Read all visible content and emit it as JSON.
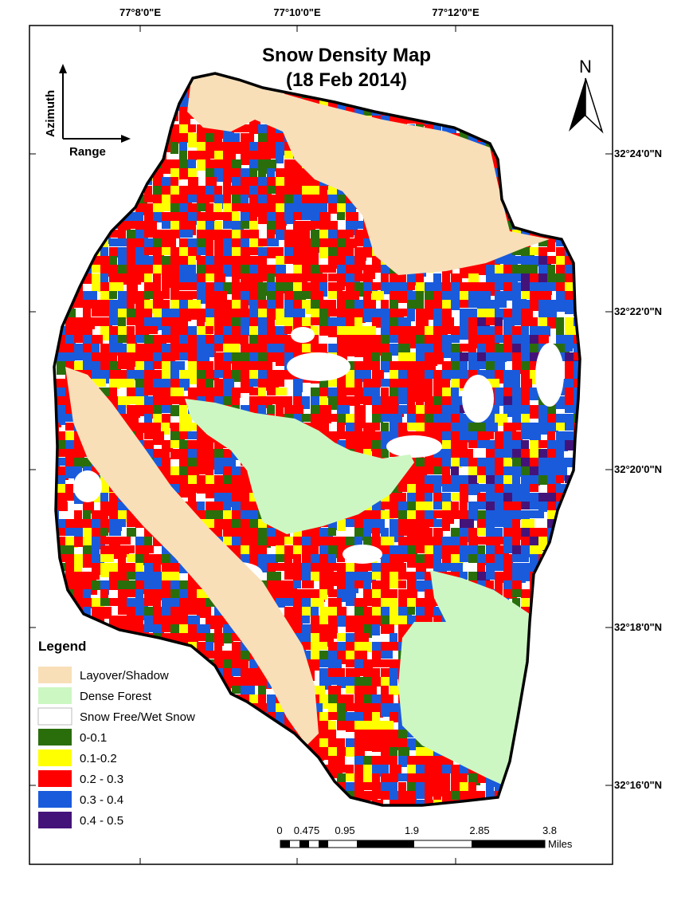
{
  "title": {
    "line1": "Snow Density Map",
    "line2": "(18 Feb 2014)"
  },
  "north_arrow": {
    "label": "N",
    "icon": "north-arrow-icon"
  },
  "axes_indicator": {
    "vertical": "Azimuth",
    "horizontal": "Range"
  },
  "grid": {
    "top_labels": [
      "77°8'0\"E",
      "77°10'0\"E",
      "77°12'0\"E"
    ],
    "right_labels": [
      "32°24'0\"N",
      "32°22'0\"N",
      "32°20'0\"N",
      "32°18'0\"N",
      "32°16'0\"N"
    ]
  },
  "legend": {
    "title": "Legend",
    "items": [
      {
        "label": "Layover/Shadow",
        "color": "#f8dfb8"
      },
      {
        "label": "Dense Forest",
        "color": "#ccf7c2"
      },
      {
        "label": "Snow Free/Wet Snow",
        "color": "#ffffff"
      },
      {
        "label": "0-0.1",
        "color": "#2a6e0c"
      },
      {
        "label": "0.1-0.2",
        "color": "#ffff00"
      },
      {
        "label": "0.2 - 0.3",
        "color": "#ff0000"
      },
      {
        "label": "0.3 - 0.4",
        "color": "#1a5bdc"
      },
      {
        "label": "0.4 - 0.5",
        "color": "#44137a"
      }
    ]
  },
  "scale_bar": {
    "ticks": [
      "0",
      "0.475",
      "0.95",
      "1.9",
      "2.85",
      "3.8"
    ],
    "unit": "Miles"
  },
  "colors": {
    "layover": "#f8dfb8",
    "forest": "#ccf7c2",
    "d01": "#2a6e0c",
    "d12": "#ffff00",
    "d23": "#ff0000",
    "d34": "#1a5bdc",
    "d45": "#44137a"
  }
}
